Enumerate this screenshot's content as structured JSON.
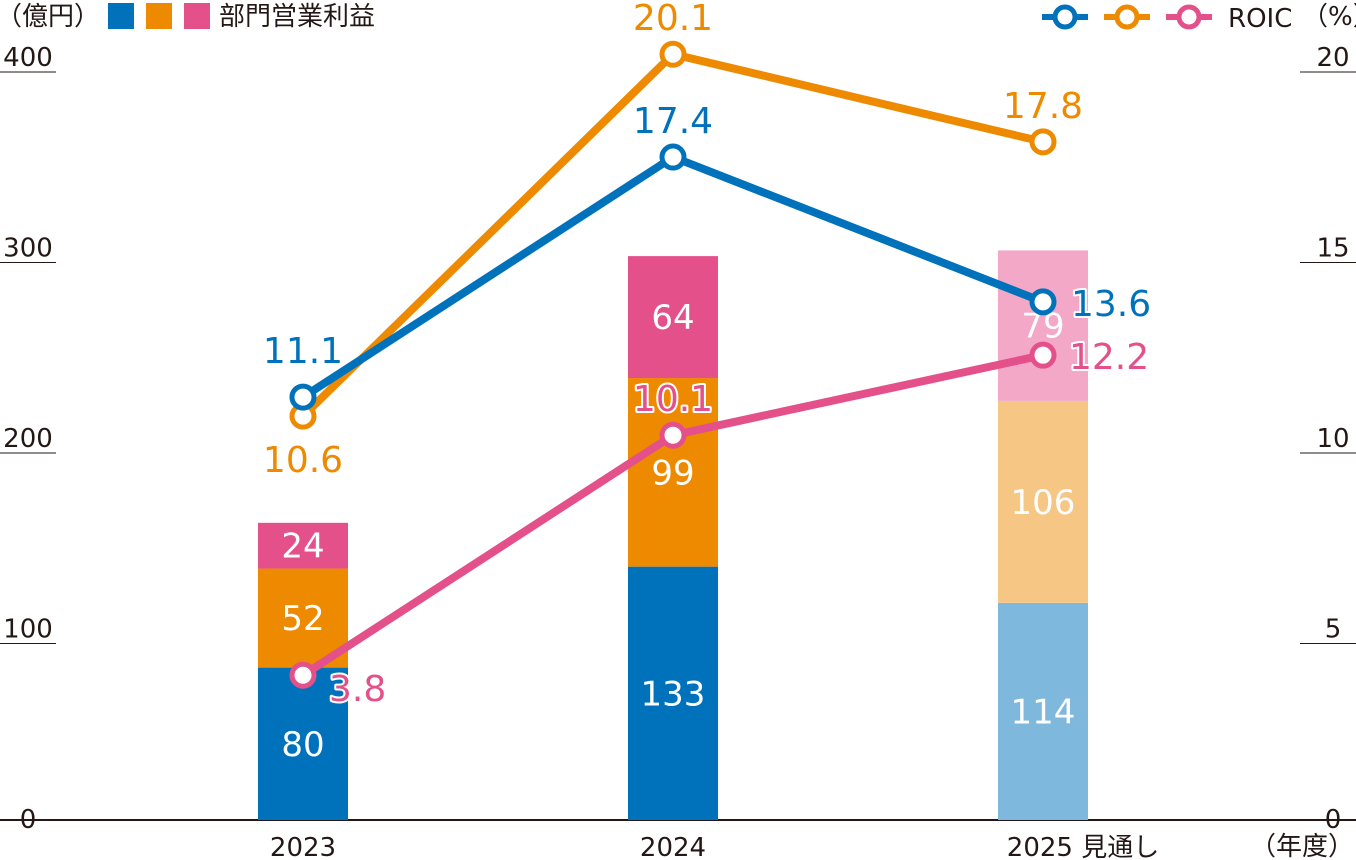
{
  "legend": {
    "left_unit": "（億円）",
    "left_label": "部門営業利益",
    "right_label": "ROIC",
    "right_unit": "（%）"
  },
  "colors": {
    "blue": "#0072BC",
    "orange": "#EE8A00",
    "pink": "#E4508A",
    "blue_light": "#7FB8DD",
    "orange_light": "#F6C685",
    "pink_light": "#F2A8C6",
    "axis": "#231815"
  },
  "chart_data": {
    "type": "bar",
    "categories": [
      "2023",
      "2024",
      "2025 見通し"
    ],
    "x_unit": "（年度）",
    "stacks": [
      {
        "values": [
          80,
          133,
          114
        ],
        "color": "blue"
      },
      {
        "values": [
          52,
          99,
          106
        ],
        "color": "orange"
      },
      {
        "values": [
          24,
          64,
          79
        ],
        "color": "pink"
      }
    ],
    "forecast_category_index": 2,
    "lines": [
      {
        "name": "ROIC",
        "color": "blue",
        "values": [
          11.1,
          17.4,
          13.6
        ]
      },
      {
        "name": "ROIC",
        "color": "orange",
        "values": [
          10.6,
          20.1,
          17.8
        ]
      },
      {
        "name": "ROIC",
        "color": "pink",
        "values": [
          3.8,
          10.1,
          12.2
        ]
      }
    ],
    "left_axis": {
      "ylim": [
        0,
        400
      ],
      "ticks": [
        "0",
        "100",
        "200",
        "300",
        "400"
      ]
    },
    "right_axis": {
      "ylim": [
        0,
        20
      ],
      "ticks": [
        "0",
        "5",
        "10",
        "15",
        "20"
      ]
    },
    "grid": false,
    "legend_position": "top"
  }
}
